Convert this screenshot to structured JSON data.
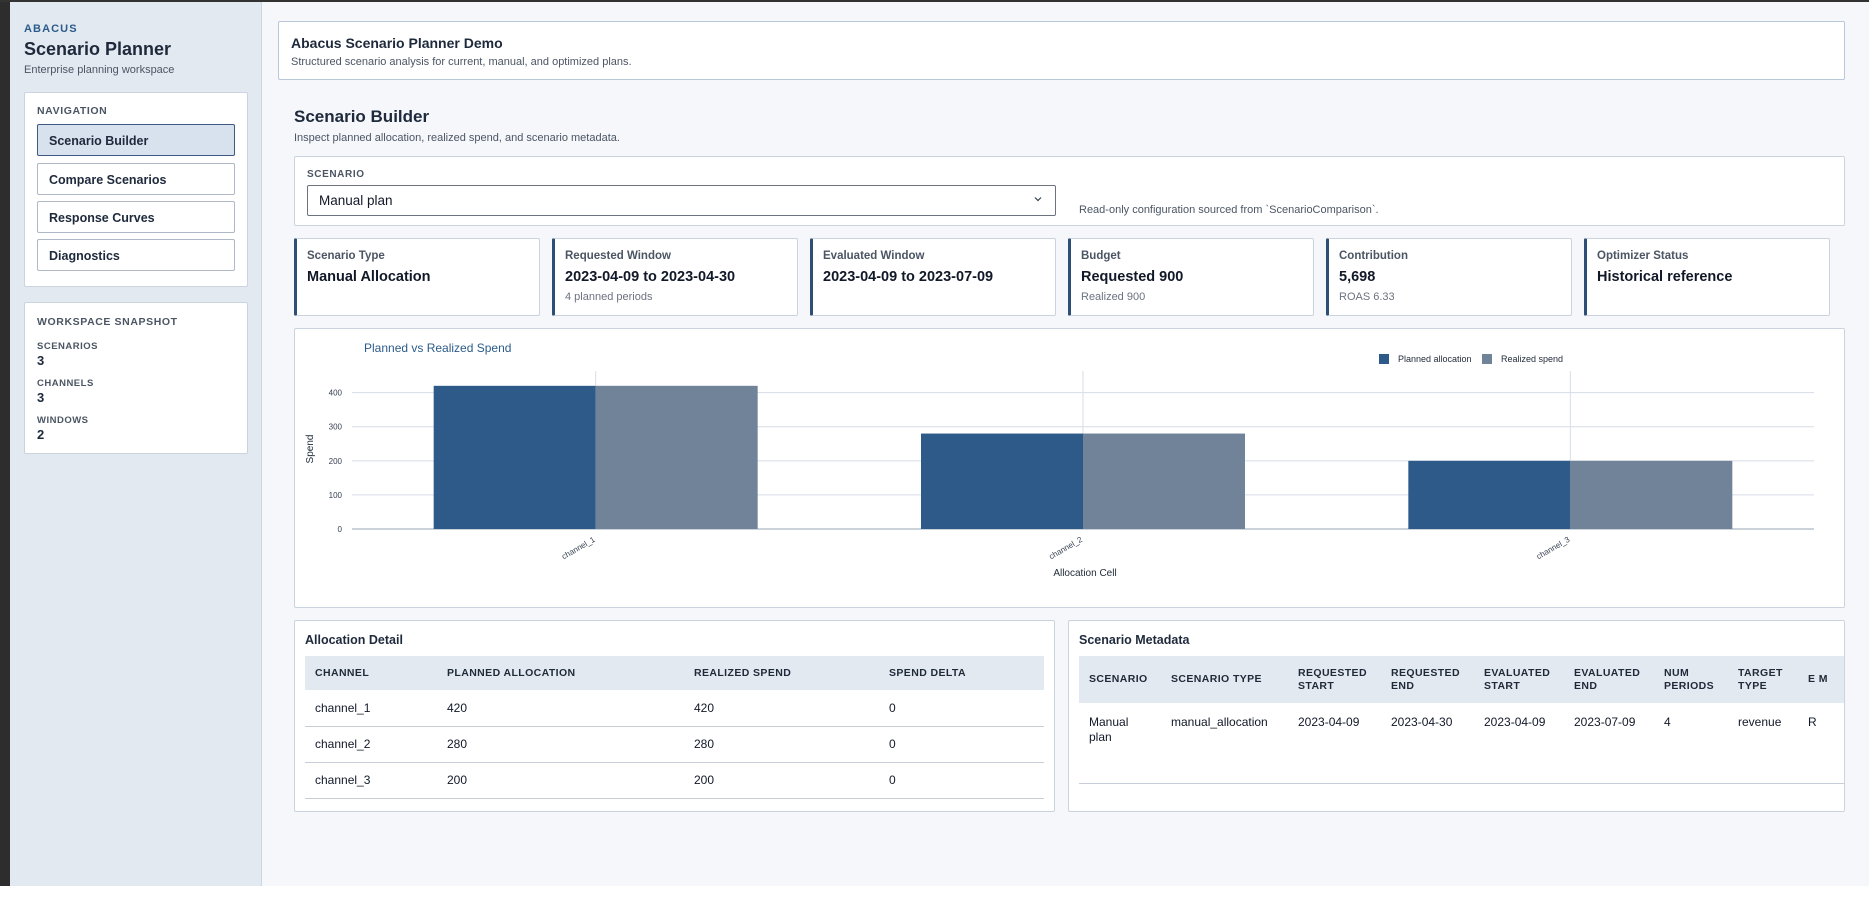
{
  "sidebar": {
    "kicker": "ABACUS",
    "title": "Scenario Planner",
    "subtitle": "Enterprise planning workspace",
    "nav_label": "NAVIGATION",
    "nav_items": [
      "Scenario Builder",
      "Compare Scenarios",
      "Response Curves",
      "Diagnostics"
    ],
    "active_nav": "Scenario Builder",
    "snapshot_label": "WORKSPACE SNAPSHOT",
    "snapshot": [
      {
        "label": "SCENARIOS",
        "value": "3"
      },
      {
        "label": "CHANNELS",
        "value": "3"
      },
      {
        "label": "WINDOWS",
        "value": "2"
      }
    ]
  },
  "header": {
    "title": "Abacus Scenario Planner Demo",
    "subtitle": "Structured scenario analysis for current, manual, and optimized plans."
  },
  "section": {
    "title": "Scenario Builder",
    "subtitle": "Inspect planned allocation, realized spend, and scenario metadata."
  },
  "scenario": {
    "label": "SCENARIO",
    "selected": "Manual plan",
    "note": "Read-only configuration sourced from `ScenarioComparison`."
  },
  "metrics": [
    {
      "label": "Scenario Type",
      "value": "Manual Allocation",
      "sub": ""
    },
    {
      "label": "Requested Window",
      "value": "2023-04-09 to 2023-04-30",
      "sub": "4 planned periods"
    },
    {
      "label": "Evaluated Window",
      "value": "2023-04-09 to 2023-07-09",
      "sub": ""
    },
    {
      "label": "Budget",
      "value": "Requested 900",
      "sub": "Realized 900"
    },
    {
      "label": "Contribution",
      "value": "5,698",
      "sub": "ROAS 6.33"
    },
    {
      "label": "Optimizer Status",
      "value": "Historical reference",
      "sub": ""
    }
  ],
  "chart_data": {
    "type": "bar",
    "title": "Planned vs Realized Spend",
    "xlabel": "Allocation Cell",
    "ylabel": "Spend",
    "categories": [
      "channel_1",
      "channel_2",
      "channel_3"
    ],
    "series": [
      {
        "name": "Planned allocation",
        "values": [
          420,
          280,
          200
        ],
        "color": "#2e5a8a"
      },
      {
        "name": "Realized spend",
        "values": [
          420,
          280,
          200
        ],
        "color": "#718399"
      }
    ],
    "yticks": [
      0,
      100,
      200,
      300,
      400
    ],
    "ylim": [
      0,
      440
    ],
    "legend": "top-right",
    "grid": true
  },
  "allocation": {
    "title": "Allocation Detail",
    "columns": [
      "CHANNEL",
      "PLANNED ALLOCATION",
      "REALIZED SPEND",
      "SPEND DELTA"
    ],
    "rows": [
      [
        "channel_1",
        "420",
        "420",
        "0"
      ],
      [
        "channel_2",
        "280",
        "280",
        "0"
      ],
      [
        "channel_3",
        "200",
        "200",
        "0"
      ]
    ]
  },
  "metadata": {
    "title": "Scenario Metadata",
    "columns": [
      "SCENARIO",
      "SCENARIO TYPE",
      "REQUESTED START",
      "REQUESTED END",
      "EVALUATED START",
      "EVALUATED END",
      "NUM PERIODS",
      "TARGET TYPE",
      "E M"
    ],
    "rows": [
      [
        "Manual plan",
        "manual_allocation",
        "2023-04-09",
        "2023-04-30",
        "2023-04-09",
        "2023-07-09",
        "4",
        "revenue",
        "R"
      ]
    ]
  }
}
